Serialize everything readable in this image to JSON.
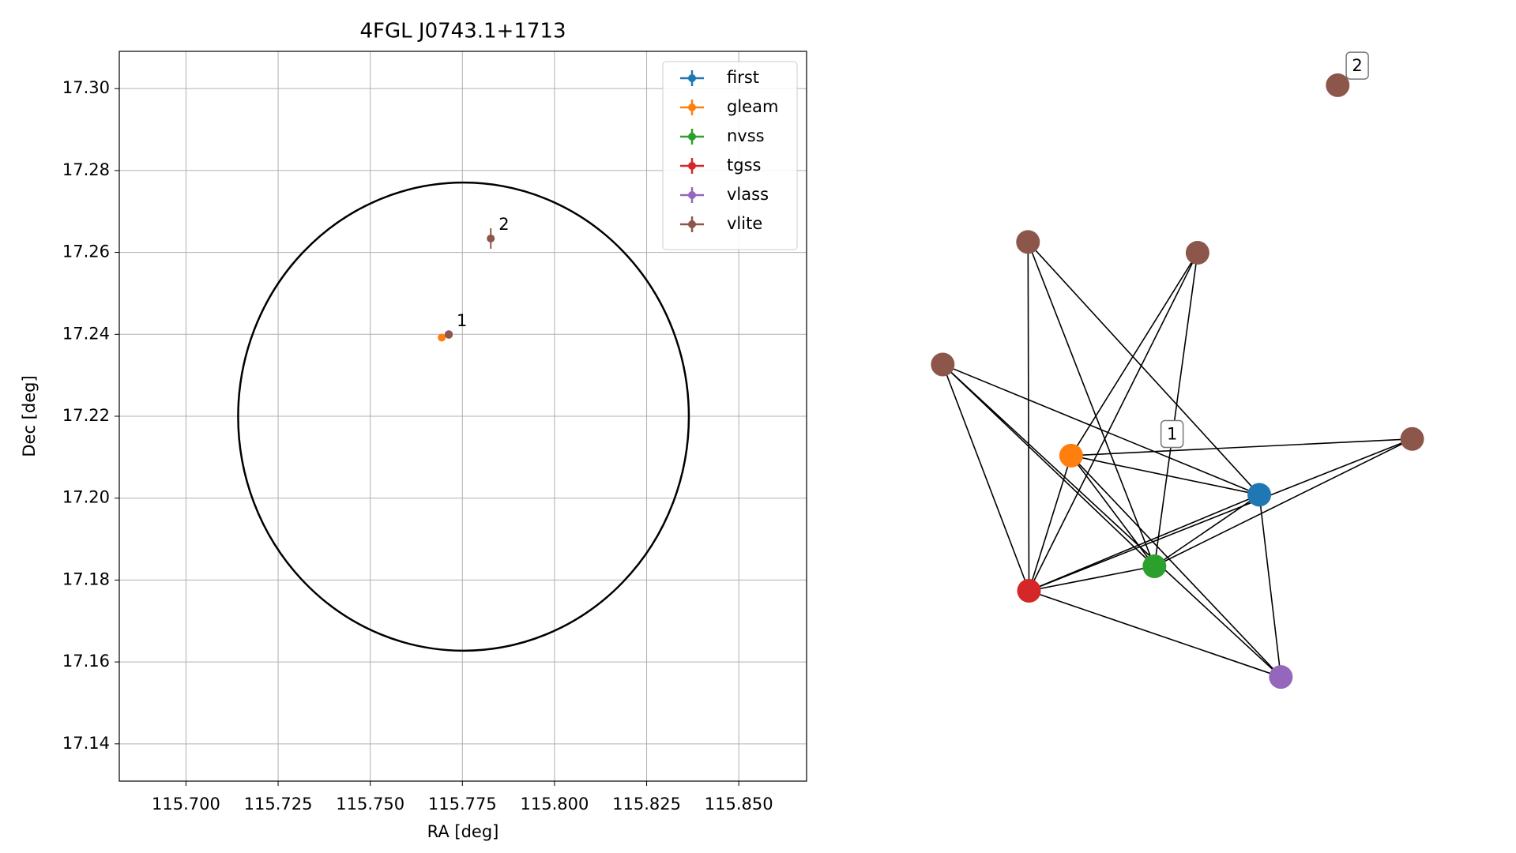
{
  "chart_data": {
    "type": "scatter",
    "title": "4FGL J0743.1+1713",
    "xlabel": "RA [deg]",
    "ylabel": "Dec [deg]",
    "xlim": [
      115.6819,
      115.8684
    ],
    "ylim": [
      17.1309,
      17.3091
    ],
    "xticks": [
      {
        "value": 115.7,
        "label": "115.700"
      },
      {
        "value": 115.725,
        "label": "115.725"
      },
      {
        "value": 115.75,
        "label": "115.750"
      },
      {
        "value": 115.775,
        "label": "115.775"
      },
      {
        "value": 115.8,
        "label": "115.800"
      },
      {
        "value": 115.825,
        "label": "115.825"
      },
      {
        "value": 115.85,
        "label": "115.850"
      }
    ],
    "yticks": [
      17.14,
      17.16,
      17.18,
      {
        "value": 17.2,
        "label": "17.20"
      },
      17.22,
      17.24,
      17.26,
      17.28,
      {
        "value": 17.3,
        "label": "17.30"
      }
    ],
    "grid": true,
    "legend": "upper right",
    "ellipse": {
      "x": 115.7753,
      "y": 17.2199,
      "width": 0.1223,
      "height": 0.1143,
      "color": "#000000"
    },
    "series": [
      {
        "name": "first",
        "color": "#1f77b4",
        "x": [
          115.7713
        ],
        "y": [
          17.24
        ]
      },
      {
        "name": "gleam",
        "color": "#ff7f0e",
        "x": [
          115.7694
        ],
        "y": [
          17.2392
        ]
      },
      {
        "name": "nvss",
        "color": "#2ca02c",
        "x": [
          115.7713
        ],
        "y": [
          17.24
        ]
      },
      {
        "name": "tgss",
        "color": "#d62728",
        "x": [
          115.7713
        ],
        "y": [
          17.24
        ]
      },
      {
        "name": "vlass",
        "color": "#9467bd",
        "x": [
          115.7713
        ],
        "y": [
          17.24
        ]
      },
      {
        "name": "vlite",
        "color": "#8c564b",
        "x": [
          115.7713,
          115.7827
        ],
        "y": [
          17.2399,
          17.2634
        ],
        "yerr": [
          0.0007,
          0.0025
        ]
      }
    ],
    "annotations": [
      {
        "text": "1",
        "x": 115.7713,
        "y": 17.2399
      },
      {
        "text": "2",
        "x": 115.7827,
        "y": 17.2634
      }
    ]
  },
  "graph": {
    "labels": [
      "1",
      "2"
    ]
  }
}
